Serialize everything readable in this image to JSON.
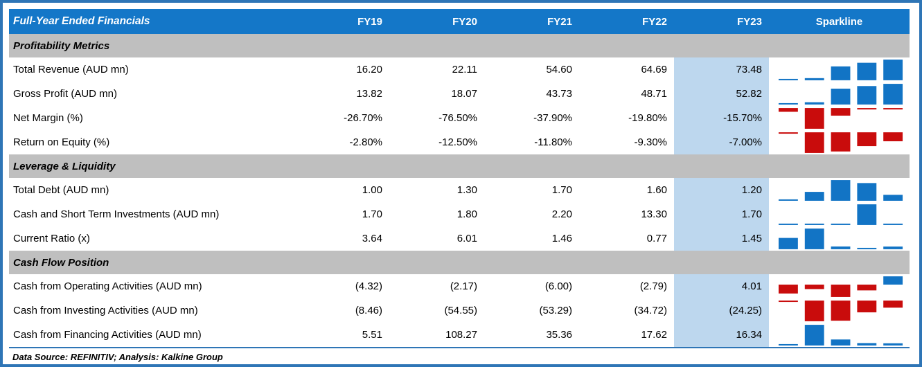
{
  "chart_data": {
    "type": "table",
    "title": "Full-Year Ended Financials",
    "columns": [
      "FY19",
      "FY20",
      "FY21",
      "FY22",
      "FY23"
    ],
    "sparkline_column": "Sparkline",
    "highlight_column": "FY23",
    "sections": [
      {
        "title": "Profitability Metrics",
        "rows": [
          {
            "label": "Total Revenue (AUD mn)",
            "display": [
              "16.20",
              "22.11",
              "54.60",
              "64.69",
              "73.48"
            ],
            "values": [
              16.2,
              22.11,
              54.6,
              64.69,
              73.48
            ]
          },
          {
            "label": "Gross Profit (AUD mn)",
            "display": [
              "13.82",
              "18.07",
              "43.73",
              "48.71",
              "52.82"
            ],
            "values": [
              13.82,
              18.07,
              43.73,
              48.71,
              52.82
            ]
          },
          {
            "label": "Net Margin (%)",
            "display": [
              "-26.70%",
              "-76.50%",
              "-37.90%",
              "-19.80%",
              "-15.70%"
            ],
            "values": [
              -26.7,
              -76.5,
              -37.9,
              -19.8,
              -15.7
            ]
          },
          {
            "label": "Return on Equity (%)",
            "display": [
              "-2.80%",
              "-12.50%",
              "-11.80%",
              "-9.30%",
              "-7.00%"
            ],
            "values": [
              -2.8,
              -12.5,
              -11.8,
              -9.3,
              -7.0
            ]
          }
        ]
      },
      {
        "title": "Leverage & Liquidity",
        "rows": [
          {
            "label": "Total Debt (AUD mn)",
            "display": [
              "1.00",
              "1.30",
              "1.70",
              "1.60",
              "1.20"
            ],
            "values": [
              1.0,
              1.3,
              1.7,
              1.6,
              1.2
            ]
          },
          {
            "label": "Cash and Short Term Investments (AUD mn)",
            "display": [
              "1.70",
              "1.80",
              "2.20",
              "13.30",
              "1.70"
            ],
            "values": [
              1.7,
              1.8,
              2.2,
              13.3,
              1.7
            ]
          },
          {
            "label": "Current Ratio (x)",
            "display": [
              "3.64",
              "6.01",
              "1.46",
              "0.77",
              "1.45"
            ],
            "values": [
              3.64,
              6.01,
              1.46,
              0.77,
              1.45
            ]
          }
        ]
      },
      {
        "title": "Cash Flow Position",
        "rows": [
          {
            "label": "Cash from Operating Activities (AUD mn)",
            "display": [
              "(4.32)",
              "(2.17)",
              "(6.00)",
              "(2.79)",
              "4.01"
            ],
            "values": [
              -4.32,
              -2.17,
              -6.0,
              -2.79,
              4.01
            ]
          },
          {
            "label": "Cash from Investing Activities (AUD mn)",
            "display": [
              "(8.46)",
              "(54.55)",
              "(53.29)",
              "(34.72)",
              "(24.25)"
            ],
            "values": [
              -8.46,
              -54.55,
              -53.29,
              -34.72,
              -24.25
            ]
          },
          {
            "label": "Cash from Financing Activities (AUD mn)",
            "display": [
              "5.51",
              "108.27",
              "35.36",
              "17.62",
              "16.34"
            ],
            "values": [
              5.51,
              108.27,
              35.36,
              17.62,
              16.34
            ]
          }
        ]
      }
    ],
    "sparkline_type": "bar",
    "footer": "Data Source: REFINITIV; Analysis: Kalkine Group"
  },
  "colors": {
    "header_bg": "#1477c8",
    "header_text": "#ffffff",
    "section_bg": "#bfbfbf",
    "highlight_col_bg": "#bdd7ee",
    "positive_bar": "#1274c5",
    "negative_bar": "#c90c0c",
    "outer_border": "#2e75b6",
    "footer_line": "#2e75b6"
  }
}
